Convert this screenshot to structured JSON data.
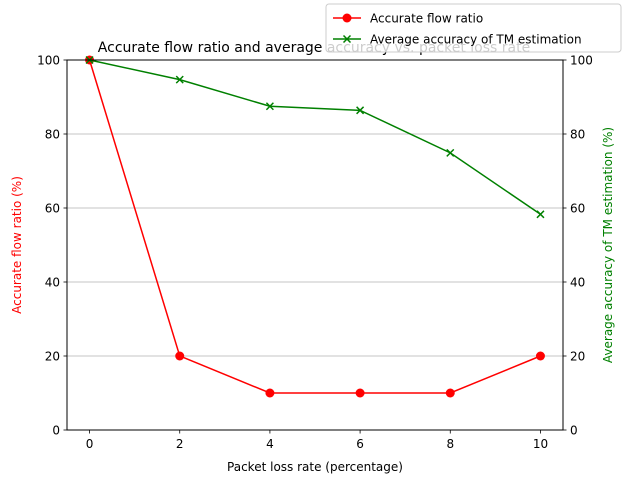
{
  "chart_data": {
    "type": "line",
    "title": "Accurate flow ratio and average accuracy vs. packet loss rate",
    "xlabel": "Packet loss rate (percentage)",
    "ylabel_left": "Accurate flow ratio (%)",
    "ylabel_right": "Average accuracy of TM estimation (%)",
    "xlim": [
      -0.5,
      10.5
    ],
    "ylim": [
      0,
      100
    ],
    "x_ticks": [
      0,
      2,
      4,
      6,
      8,
      10
    ],
    "y_ticks": [
      0,
      20,
      40,
      60,
      80,
      100
    ],
    "grid": "horizontal",
    "legend_position": "top-right",
    "x": [
      0,
      2,
      4,
      6,
      8,
      10
    ],
    "series": [
      {
        "name": "Accurate flow ratio",
        "axis": "left",
        "color": "#ff0000",
        "marker": "circle",
        "values": [
          100,
          20,
          10,
          10,
          10,
          20
        ]
      },
      {
        "name": "Average accuracy of TM estimation",
        "axis": "right",
        "color": "#008000",
        "marker": "x",
        "values": [
          100,
          94.7,
          87.5,
          86.4,
          74.9,
          58.3
        ]
      }
    ]
  }
}
